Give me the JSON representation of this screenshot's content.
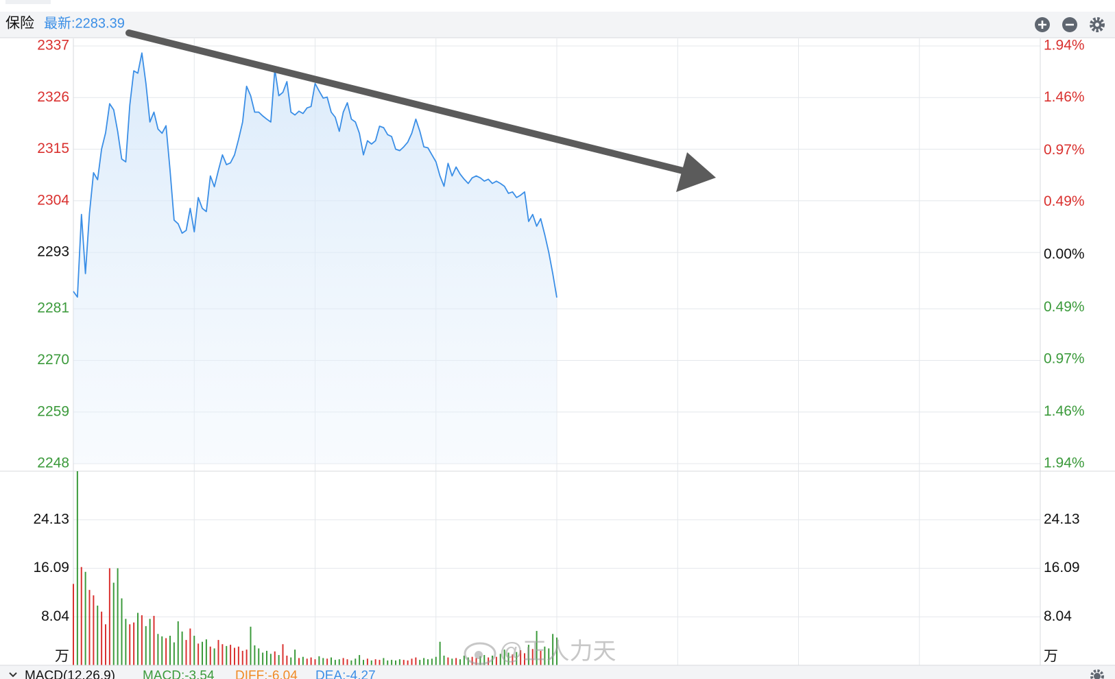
{
  "header": {
    "name": "保险",
    "latest": "最新:2283.39"
  },
  "chart_data": [
    {
      "type": "line",
      "color": "#3a8ee6",
      "grid": true,
      "xlim": [
        0,
        240
      ],
      "xticks": [
        0,
        30,
        60,
        90,
        120,
        150,
        180,
        210,
        240
      ],
      "ylim": [
        2248,
        2337
      ],
      "yticks": [
        2337,
        2326,
        2315,
        2304,
        2293,
        2281,
        2270,
        2259,
        2248
      ],
      "ytick_colors": [
        "#d9312f",
        "#d9312f",
        "#d9312f",
        "#d9312f",
        "#111111",
        "#3b9a3b",
        "#3b9a3b",
        "#3b9a3b",
        "#3b9a3b"
      ],
      "y2lim": [
        -1.94,
        1.94
      ],
      "y2ticks": [
        {
          "value": 1.94,
          "label": "1.94%"
        },
        {
          "value": 1.46,
          "label": "1.46%"
        },
        {
          "value": 0.97,
          "label": "0.97%"
        },
        {
          "value": 0.49,
          "label": "0.49%"
        },
        {
          "value": 0,
          "label": "0.00%"
        },
        {
          "value": -0.49,
          "label": "0.49%"
        },
        {
          "value": -0.97,
          "label": "0.97%"
        },
        {
          "value": -1.46,
          "label": "1.46%"
        },
        {
          "value": -1.94,
          "label": "1.94%"
        }
      ],
      "y2tick_colors": [
        "#d9312f",
        "#d9312f",
        "#d9312f",
        "#d9312f",
        "#111111",
        "#3b9a3b",
        "#3b9a3b",
        "#3b9a3b",
        "#3b9a3b"
      ],
      "values": [
        2284.7,
        2283.5,
        2301.1,
        2288.5,
        2301.4,
        2310.0,
        2308.5,
        2315.0,
        2318.5,
        2324.7,
        2323.4,
        2318.8,
        2312.9,
        2312.3,
        2324.4,
        2331.7,
        2331.2,
        2335.5,
        2329.0,
        2320.8,
        2322.9,
        2319.3,
        2318.4,
        2320.0,
        2310.5,
        2299.9,
        2299.1,
        2297.1,
        2297.7,
        2302.4,
        2297.4,
        2304.7,
        2302.4,
        2301.7,
        2309.3,
        2307.0,
        2310.5,
        2313.8,
        2311.7,
        2312.1,
        2313.8,
        2317.1,
        2320.8,
        2328.4,
        2326.4,
        2322.9,
        2322.9,
        2322.1,
        2321.4,
        2320.8,
        2332.0,
        2326.4,
        2327.1,
        2329.4,
        2322.9,
        2322.3,
        2323.1,
        2322.6,
        2323.8,
        2324.1,
        2329.0,
        2327.4,
        2325.9,
        2326.1,
        2322.9,
        2321.8,
        2318.8,
        2322.9,
        2324.9,
        2321.4,
        2320.8,
        2318.4,
        2313.8,
        2316.8,
        2316.1,
        2316.8,
        2319.9,
        2319.6,
        2318.1,
        2317.7,
        2315.0,
        2314.7,
        2315.5,
        2316.5,
        2318.4,
        2321.4,
        2318.8,
        2315.5,
        2315.3,
        2313.8,
        2312.3,
        2309.3,
        2307.1,
        2312.0,
        2309.3,
        2311.2,
        2309.7,
        2308.6,
        2307.7,
        2308.9,
        2309.3,
        2308.9,
        2308.2,
        2308.6,
        2307.7,
        2308.2,
        2307.7,
        2307.1,
        2305.6,
        2305.9,
        2304.7,
        2305.2,
        2305.9,
        2299.6,
        2301.1,
        2298.6,
        2300.2,
        2296.8,
        2293.0,
        2288.5,
        2283.39
      ]
    },
    {
      "type": "bar",
      "grid": true,
      "unit": "万",
      "xlim": [
        0,
        240
      ],
      "xticks": [
        0,
        30,
        60,
        90,
        120,
        150,
        180,
        210,
        240
      ],
      "ylim": [
        0,
        32.2
      ],
      "yticks": [
        24.13,
        16.09,
        8.04
      ],
      "values": [
        13.5,
        32.2,
        16.3,
        15.5,
        12.5,
        11.6,
        9.9,
        8.9,
        6.8,
        16.1,
        13.7,
        16.1,
        11.1,
        7.7,
        6.8,
        7.1,
        8.7,
        8.3,
        6.5,
        7.7,
        8.2,
        5.2,
        4.8,
        4.5,
        4.9,
        3.8,
        7.3,
        5.6,
        4.2,
        6.1,
        4.9,
        3.6,
        3.9,
        4.3,
        3.1,
        2.8,
        4.2,
        3.5,
        3.2,
        3.4,
        2.9,
        3.1,
        2.4,
        2.6,
        6.4,
        3.3,
        2.8,
        2.1,
        2.4,
        1.9,
        2.3,
        1.7,
        3.5,
        1.6,
        1.3,
        2.6,
        1.2,
        1.4,
        1.1,
        1.3,
        1.0,
        1.5,
        1.2,
        1.1,
        1.3,
        0.9,
        1.0,
        1.2,
        1.0,
        0.8,
        1.1,
        1.7,
        0.9,
        1.1,
        0.8,
        1.0,
        0.9,
        1.2,
        0.8,
        0.9,
        0.8,
        1.0,
        0.9,
        0.8,
        1.1,
        1.3,
        0.9,
        1.2,
        1.0,
        1.1,
        1.4,
        3.9,
        1.6,
        1.3,
        1.1,
        1.2,
        1.0,
        1.6,
        1.3,
        1.4,
        1.2,
        1.5,
        1.7,
        1.3,
        1.6,
        1.4,
        1.9,
        2.6,
        2.1,
        1.8,
        2.2,
        2.5,
        2.0,
        3.4,
        2.7,
        5.7,
        2.4,
        3.1,
        2.8,
        5.2,
        4.6
      ],
      "colors": [
        "#d9312f",
        "#3b9a3b",
        "#d9312f",
        "#3b9a3b",
        "#d9312f",
        "#d9312f",
        "#3b9a3b",
        "#d9312f",
        "#d9312f",
        "#d9312f",
        "#3b9a3b",
        "#3b9a3b",
        "#3b9a3b",
        "#3b9a3b",
        "#d9312f",
        "#d9312f",
        "#3b9a3b",
        "#d9312f",
        "#3b9a3b",
        "#3b9a3b",
        "#d9312f",
        "#3b9a3b",
        "#3b9a3b",
        "#d9312f",
        "#3b9a3b",
        "#3b9a3b",
        "#3b9a3b",
        "#3b9a3b",
        "#d9312f",
        "#d9312f",
        "#3b9a3b",
        "#d9312f",
        "#3b9a3b",
        "#3b9a3b",
        "#d9312f",
        "#3b9a3b",
        "#d9312f",
        "#d9312f",
        "#3b9a3b",
        "#d9312f",
        "#d9312f",
        "#d9312f",
        "#d9312f",
        "#d9312f",
        "#3b9a3b",
        "#3b9a3b",
        "#3b9a3b",
        "#3b9a3b",
        "#3b9a3b",
        "#3b9a3b",
        "#d9312f",
        "#3b9a3b",
        "#d9312f",
        "#d9312f",
        "#3b9a3b",
        "#3b9a3b",
        "#d9312f",
        "#3b9a3b",
        "#d9312f",
        "#d9312f",
        "#d9312f",
        "#3b9a3b",
        "#3b9a3b",
        "#d9312f",
        "#3b9a3b",
        "#3b9a3b",
        "#3b9a3b",
        "#d9312f",
        "#d9312f",
        "#3b9a3b",
        "#3b9a3b",
        "#3b9a3b",
        "#3b9a3b",
        "#d9312f",
        "#3b9a3b",
        "#d9312f",
        "#d9312f",
        "#3b9a3b",
        "#3b9a3b",
        "#3b9a3b",
        "#3b9a3b",
        "#3b9a3b",
        "#d9312f",
        "#d9312f",
        "#d9312f",
        "#d9312f",
        "#3b9a3b",
        "#3b9a3b",
        "#3b9a3b",
        "#3b9a3b",
        "#3b9a3b",
        "#3b9a3b",
        "#3b9a3b",
        "#d9312f",
        "#3b9a3b",
        "#d9312f",
        "#3b9a3b",
        "#3b9a3b",
        "#3b9a3b",
        "#d9312f",
        "#d9312f",
        "#3b9a3b",
        "#3b9a3b",
        "#d9312f",
        "#3b9a3b",
        "#d9312f",
        "#3b9a3b",
        "#3b9a3b",
        "#3b9a3b",
        "#d9312f",
        "#3b9a3b",
        "#d9312f",
        "#d9312f",
        "#3b9a3b",
        "#d9312f",
        "#3b9a3b",
        "#d9312f",
        "#3b9a3b",
        "#3b9a3b",
        "#3b9a3b",
        "#3b9a3b"
      ]
    }
  ],
  "indicator_bar": {
    "label": "MACD(12,26,9)",
    "macd": "MACD:-3.54",
    "diff": "DIFF:-6.04",
    "dea": "DEA:-4.27"
  },
  "watermark": "@正人力天"
}
